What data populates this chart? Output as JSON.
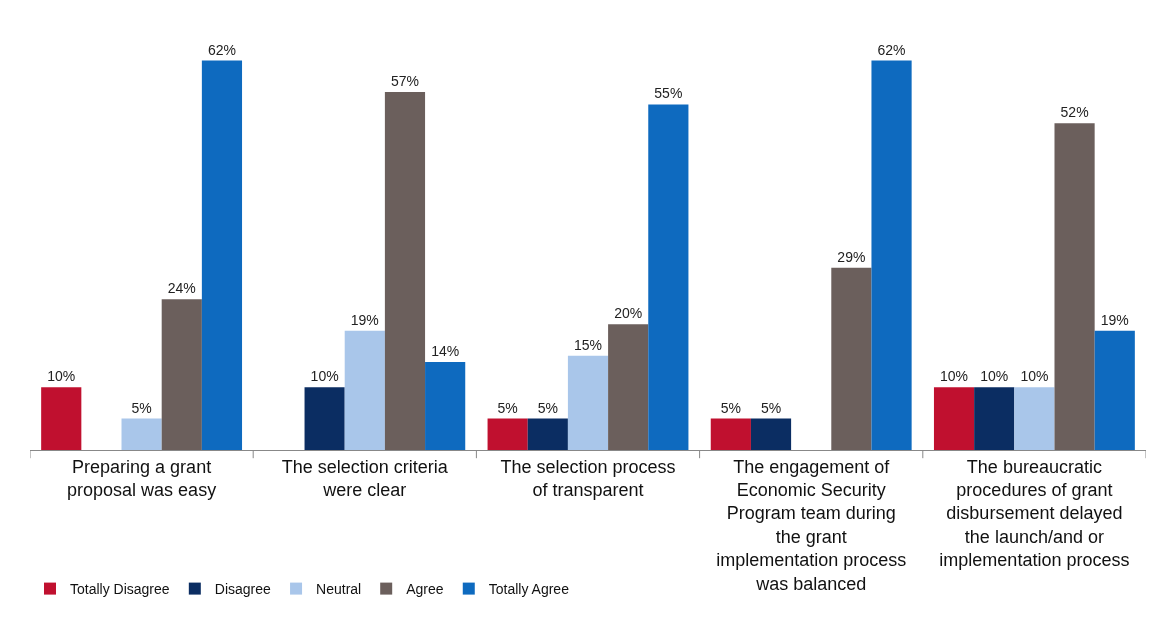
{
  "chart_data": {
    "type": "bar",
    "categories": [
      "Preparing a grant proposal was easy",
      "The selection criteria were clear",
      "The selection process of transparent",
      "The engagement of Economic Security Program team during the grant implementation process was balanced",
      "The bureaucratic procedures of grant disbursement delayed the launch/and or implementation process"
    ],
    "series": [
      {
        "name": "Totally Disagree",
        "color": "#c0102f",
        "values": [
          10,
          null,
          5,
          5,
          10
        ],
        "value_labels": [
          "10%",
          null,
          "5%",
          "5%",
          "10%"
        ]
      },
      {
        "name": "Disagree",
        "color": "#0b2d62",
        "values": [
          null,
          10,
          5,
          5,
          10
        ],
        "value_labels": [
          null,
          "10%",
          "5%",
          "5%",
          "10%"
        ]
      },
      {
        "name": "Neutral",
        "color": "#a9c6ea",
        "values": [
          5,
          19,
          15,
          null,
          10
        ],
        "value_labels": [
          "5%",
          "19%",
          "15%",
          null,
          "10%"
        ]
      },
      {
        "name": "Agree",
        "color": "#6b5f5c",
        "values": [
          24,
          57,
          20,
          29,
          52
        ],
        "value_labels": [
          "24%",
          "57%",
          "20%",
          "29%",
          "52%"
        ]
      },
      {
        "name": "Totally Agree",
        "color": "#0e6abf",
        "values": [
          62,
          14,
          55,
          62,
          19
        ],
        "value_labels": [
          "62%",
          "14%",
          "55%",
          "62%",
          "19%"
        ]
      }
    ],
    "tick_labels": "x",
    "legend": "bottom left"
  }
}
